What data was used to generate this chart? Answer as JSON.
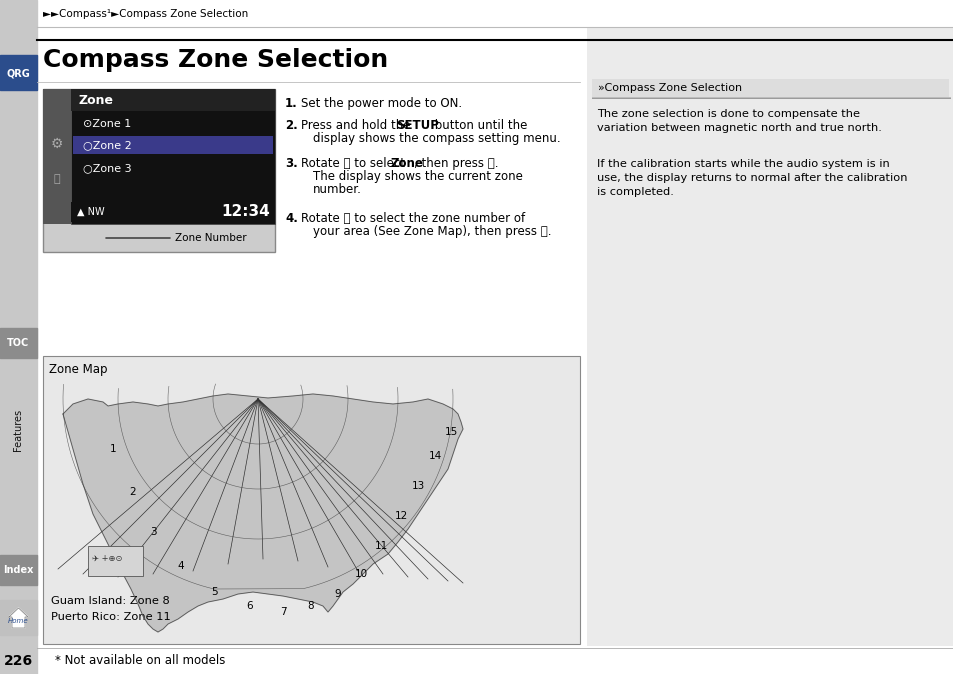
{
  "page_bg": "#ffffff",
  "sidebar_bg": "#c8c8c8",
  "right_panel_bg": "#eeeeee",
  "breadcrumb": "►►Compass¹►Compass Zone Selection",
  "title": "Compass Zone Selection",
  "title_fontsize": 18,
  "page_number": "226",
  "footer_note": "* Not available on all models",
  "right_title": "»Compass Zone Selection",
  "right_text1": "The zone selection is done to compensate the\nvariation between magnetic north and true north.",
  "right_text2": "If the calibration starts while the audio system is in\nuse, the display returns to normal after the calibration\nis completed.",
  "zone_map_label": "Zone Map",
  "guam_text": "Guam Island: Zone 8",
  "puerto_rico_text": "Puerto Rico: Zone 11",
  "display_time": "12:34",
  "zone_number_label": "Zone Number"
}
